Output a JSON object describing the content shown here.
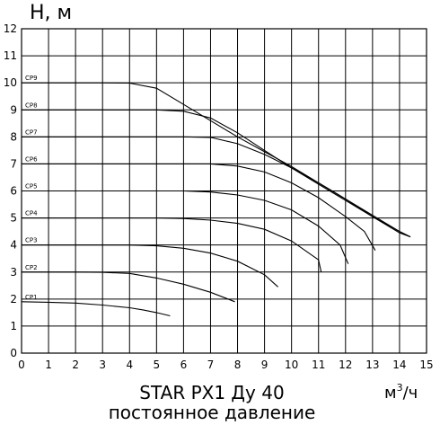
{
  "chart_data": {
    "type": "line",
    "ylabel": "H, м",
    "xlabel_base": "м",
    "xlabel_sup": "3",
    "xlabel_tail": "/ч",
    "xlim": [
      0,
      15
    ],
    "ylim": [
      0,
      12
    ],
    "x_ticks": [
      "0",
      "1",
      "2",
      "3",
      "4",
      "5",
      "6",
      "7",
      "8",
      "9",
      "10",
      "11",
      "12",
      "13",
      "14",
      "15"
    ],
    "y_ticks": [
      "0",
      "1",
      "2",
      "3",
      "4",
      "5",
      "6",
      "7",
      "8",
      "9",
      "10",
      "11",
      "12"
    ],
    "grid": true,
    "series": [
      {
        "name": "CP1",
        "points": [
          [
            0,
            1.9
          ],
          [
            1,
            1.88
          ],
          [
            2,
            1.85
          ],
          [
            3,
            1.78
          ],
          [
            4,
            1.68
          ],
          [
            4.5,
            1.6
          ],
          [
            5,
            1.5
          ],
          [
            5.5,
            1.38
          ]
        ]
      },
      {
        "name": "CP2",
        "points": [
          [
            0,
            3.0
          ],
          [
            2,
            3.0
          ],
          [
            3,
            2.99
          ],
          [
            4,
            2.95
          ],
          [
            5,
            2.78
          ],
          [
            6,
            2.55
          ],
          [
            7,
            2.25
          ],
          [
            7.9,
            1.9
          ]
        ]
      },
      {
        "name": "CP3",
        "points": [
          [
            0,
            4.0
          ],
          [
            3,
            4.0
          ],
          [
            4,
            4.0
          ],
          [
            5,
            3.97
          ],
          [
            6,
            3.88
          ],
          [
            7,
            3.7
          ],
          [
            8,
            3.4
          ],
          [
            9,
            2.9
          ],
          [
            9.5,
            2.45
          ]
        ]
      },
      {
        "name": "CP4",
        "points": [
          [
            0,
            5.0
          ],
          [
            3,
            5.0
          ],
          [
            5,
            5.0
          ],
          [
            6,
            4.98
          ],
          [
            7,
            4.92
          ],
          [
            8,
            4.8
          ],
          [
            9,
            4.58
          ],
          [
            10,
            4.15
          ],
          [
            11,
            3.45
          ],
          [
            11.1,
            3.0
          ]
        ]
      },
      {
        "name": "CP5",
        "points": [
          [
            0,
            6.0
          ],
          [
            3,
            6.0
          ],
          [
            5,
            6.0
          ],
          [
            6,
            6.0
          ],
          [
            7,
            5.96
          ],
          [
            8,
            5.85
          ],
          [
            9,
            5.65
          ],
          [
            10,
            5.3
          ],
          [
            11,
            4.7
          ],
          [
            11.8,
            4.0
          ],
          [
            12.1,
            3.3
          ]
        ]
      },
      {
        "name": "CP6",
        "points": [
          [
            0,
            7.0
          ],
          [
            3,
            7.0
          ],
          [
            6,
            7.0
          ],
          [
            7,
            7.0
          ],
          [
            8,
            6.92
          ],
          [
            9,
            6.7
          ],
          [
            10,
            6.3
          ],
          [
            11,
            5.75
          ],
          [
            12,
            5.05
          ],
          [
            12.7,
            4.5
          ],
          [
            13.1,
            3.8
          ]
        ]
      },
      {
        "name": "CP7",
        "points": [
          [
            0,
            8.0
          ],
          [
            3,
            8.0
          ],
          [
            6,
            8.0
          ],
          [
            7,
            7.98
          ],
          [
            8,
            7.75
          ],
          [
            9,
            7.35
          ],
          [
            10,
            6.85
          ],
          [
            11,
            6.3
          ],
          [
            12,
            5.7
          ],
          [
            13,
            5.05
          ],
          [
            14,
            4.45
          ],
          [
            14.4,
            4.3
          ]
        ]
      },
      {
        "name": "CP8",
        "points": [
          [
            0,
            9.0
          ],
          [
            3,
            9.0
          ],
          [
            5,
            9.0
          ],
          [
            6,
            8.95
          ],
          [
            7,
            8.7
          ],
          [
            8,
            8.15
          ],
          [
            9,
            7.5
          ],
          [
            10,
            6.85
          ],
          [
            11,
            6.25
          ],
          [
            12,
            5.65
          ],
          [
            13,
            5.05
          ],
          [
            14,
            4.5
          ],
          [
            14.4,
            4.3
          ]
        ]
      },
      {
        "name": "CP9",
        "points": [
          [
            0,
            10.0
          ],
          [
            3,
            10.0
          ],
          [
            4,
            9.99
          ],
          [
            5,
            9.8
          ],
          [
            6,
            9.2
          ],
          [
            7,
            8.6
          ],
          [
            8,
            8.0
          ],
          [
            9,
            7.45
          ],
          [
            10,
            6.9
          ],
          [
            11,
            6.3
          ],
          [
            12,
            5.7
          ],
          [
            13,
            5.1
          ],
          [
            14,
            4.5
          ],
          [
            14.4,
            4.3
          ]
        ]
      }
    ],
    "caption_line1": "STAR PX1 Ду 40",
    "caption_line2": "постоянное давление"
  }
}
